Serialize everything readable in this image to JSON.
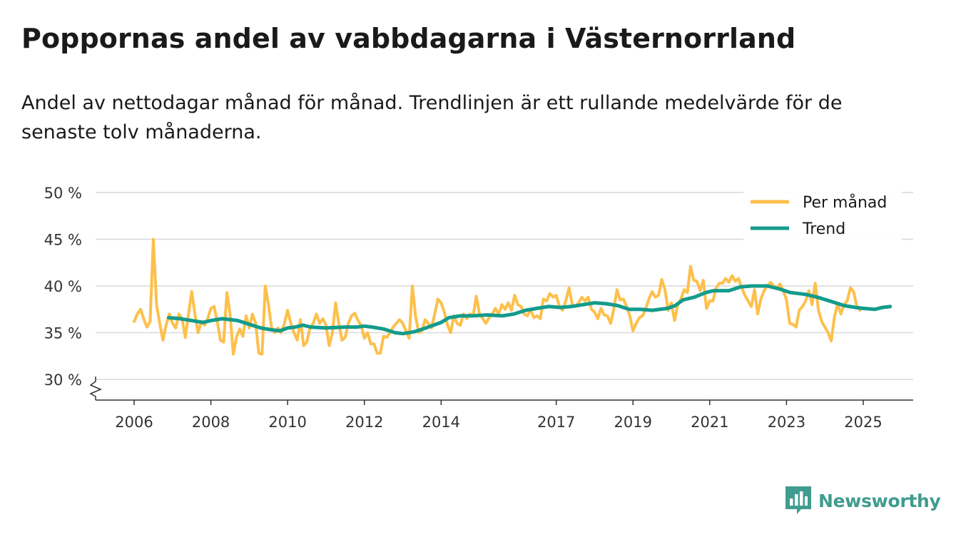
{
  "title": "Poppornas andel av vabbdagarna i Västernorrland",
  "subtitle": "Andel av nettodagar månad för månad. Trendlinjen är ett rullande medelvärde för de senaste tolv månaderna.",
  "brand": {
    "name": "Newsworthy",
    "icon": "newsworthy-logo-icon",
    "color": "#3f9c8f"
  },
  "chart_data": {
    "type": "line",
    "title": "",
    "xlabel": "",
    "ylabel": "",
    "y_ticks": [
      30,
      35,
      40,
      45,
      50
    ],
    "y_tick_labels": [
      "30 %",
      "35 %",
      "40 %",
      "45 %",
      "50 %"
    ],
    "ylim": [
      28,
      50
    ],
    "x_ticks": [
      2006,
      2008,
      2010,
      2012,
      2014,
      2017,
      2019,
      2021,
      2023,
      2025
    ],
    "x_tick_labels": [
      "2006",
      "2008",
      "2010",
      "2012",
      "2014",
      "2017",
      "2019",
      "2021",
      "2023",
      "2025"
    ],
    "xlim": [
      2005.0,
      2026.3
    ],
    "axis_break": true,
    "grid": true,
    "legend_position": "top-right",
    "series": [
      {
        "name": "Per månad",
        "color": "#fdc04c",
        "x_start": 2006.0,
        "step": 0.08333,
        "values": [
          36.2,
          37.0,
          37.5,
          36.5,
          35.6,
          36.2,
          45.0,
          38.0,
          36.0,
          34.2,
          35.8,
          37.0,
          36.0,
          35.5,
          37.0,
          36.5,
          34.5,
          37.0,
          39.4,
          37.0,
          35.0,
          36.2,
          35.8,
          36.5,
          37.6,
          37.8,
          36.2,
          34.2,
          34.0,
          39.3,
          37.0,
          32.7,
          34.5,
          35.4,
          34.6,
          36.8,
          35.5,
          37.0,
          36.0,
          32.8,
          32.7,
          40.0,
          38.0,
          35.5,
          35.0,
          35.5,
          35.0,
          36.0,
          37.4,
          36.0,
          35.0,
          34.2,
          36.4,
          33.6,
          34.0,
          35.5,
          36.0,
          37.0,
          36.0,
          36.5,
          35.8,
          33.6,
          35.0,
          38.2,
          36.0,
          34.2,
          34.5,
          36.0,
          36.8,
          37.1,
          36.3,
          35.8,
          34.4,
          35.0,
          33.8,
          33.8,
          32.8,
          32.8,
          34.6,
          34.5,
          35.0,
          35.6,
          36.0,
          36.4,
          36.0,
          35.2,
          34.4,
          40.0,
          36.8,
          35.0,
          35.2,
          36.4,
          36.0,
          35.5,
          37.0,
          38.6,
          38.2,
          37.2,
          35.8,
          35.0,
          36.8,
          36.0,
          35.8,
          37.0,
          36.5,
          37.0,
          36.8,
          38.9,
          37.0,
          36.5,
          36.0,
          36.6,
          37.0,
          37.6,
          37.0,
          38.0,
          37.5,
          38.2,
          37.4,
          39.0,
          38.0,
          37.8,
          37.0,
          36.8,
          37.5,
          36.6,
          36.8,
          36.5,
          38.6,
          38.4,
          39.2,
          38.8,
          39.0,
          37.8,
          37.4,
          38.4,
          39.8,
          38.0,
          37.8,
          38.2,
          38.8,
          38.4,
          38.8,
          37.5,
          37.2,
          36.5,
          37.6,
          36.9,
          36.8,
          36.0,
          37.5,
          39.6,
          38.5,
          38.6,
          37.8,
          36.8,
          35.2,
          36.0,
          36.6,
          36.8,
          37.6,
          38.6,
          39.4,
          38.8,
          39.0,
          40.7,
          39.6,
          37.4,
          38.2,
          36.3,
          38.0,
          38.6,
          39.6,
          39.3,
          42.1,
          40.6,
          40.5,
          39.5,
          40.6,
          37.6,
          38.4,
          38.4,
          39.8,
          40.3,
          40.3,
          40.8,
          40.4,
          41.1,
          40.5,
          40.8,
          39.8,
          39.0,
          38.4,
          37.8,
          39.6,
          37.0,
          38.6,
          39.5,
          40.0,
          40.4,
          40.0,
          39.8,
          40.2,
          39.5,
          38.5,
          36.0,
          35.9,
          35.6,
          37.4,
          37.8,
          38.4,
          39.5,
          38.0,
          40.3,
          37.4,
          36.2,
          35.6,
          35.0,
          34.1,
          36.7,
          38.1,
          37.0,
          38.0,
          38.4,
          39.8,
          39.4,
          37.8,
          37.4
        ]
      },
      {
        "name": "Trend",
        "color": "#149b8b",
        "points": [
          [
            2006.9,
            36.6
          ],
          [
            2007.2,
            36.5
          ],
          [
            2007.5,
            36.3
          ],
          [
            2007.8,
            36.1
          ],
          [
            2008.0,
            36.3
          ],
          [
            2008.3,
            36.5
          ],
          [
            2008.7,
            36.3
          ],
          [
            2009.0,
            35.9
          ],
          [
            2009.3,
            35.5
          ],
          [
            2009.6,
            35.3
          ],
          [
            2009.8,
            35.2
          ],
          [
            2010.0,
            35.5
          ],
          [
            2010.2,
            35.6
          ],
          [
            2010.4,
            35.8
          ],
          [
            2010.6,
            35.6
          ],
          [
            2011.0,
            35.5
          ],
          [
            2011.5,
            35.6
          ],
          [
            2011.8,
            35.6
          ],
          [
            2012.0,
            35.7
          ],
          [
            2012.2,
            35.6
          ],
          [
            2012.5,
            35.4
          ],
          [
            2012.8,
            35.0
          ],
          [
            2013.0,
            34.9
          ],
          [
            2013.3,
            35.1
          ],
          [
            2013.6,
            35.5
          ],
          [
            2014.0,
            36.1
          ],
          [
            2014.2,
            36.6
          ],
          [
            2014.5,
            36.8
          ],
          [
            2014.8,
            36.8
          ],
          [
            2015.2,
            36.9
          ],
          [
            2015.6,
            36.8
          ],
          [
            2015.9,
            37.0
          ],
          [
            2016.2,
            37.4
          ],
          [
            2016.5,
            37.6
          ],
          [
            2016.8,
            37.8
          ],
          [
            2017.1,
            37.7
          ],
          [
            2017.4,
            37.8
          ],
          [
            2017.7,
            38.0
          ],
          [
            2018.0,
            38.2
          ],
          [
            2018.3,
            38.1
          ],
          [
            2018.6,
            37.9
          ],
          [
            2018.9,
            37.5
          ],
          [
            2019.2,
            37.5
          ],
          [
            2019.5,
            37.4
          ],
          [
            2019.9,
            37.6
          ],
          [
            2020.1,
            37.9
          ],
          [
            2020.3,
            38.5
          ],
          [
            2020.6,
            38.8
          ],
          [
            2020.9,
            39.3
          ],
          [
            2021.1,
            39.5
          ],
          [
            2021.5,
            39.5
          ],
          [
            2021.8,
            39.9
          ],
          [
            2022.1,
            40.0
          ],
          [
            2022.5,
            40.0
          ],
          [
            2022.8,
            39.7
          ],
          [
            2023.1,
            39.3
          ],
          [
            2023.5,
            39.1
          ],
          [
            2023.8,
            38.8
          ],
          [
            2024.2,
            38.3
          ],
          [
            2024.5,
            37.9
          ],
          [
            2024.8,
            37.7
          ],
          [
            2025.0,
            37.6
          ],
          [
            2025.3,
            37.5
          ],
          [
            2025.5,
            37.7
          ],
          [
            2025.7,
            37.8
          ]
        ]
      }
    ]
  }
}
